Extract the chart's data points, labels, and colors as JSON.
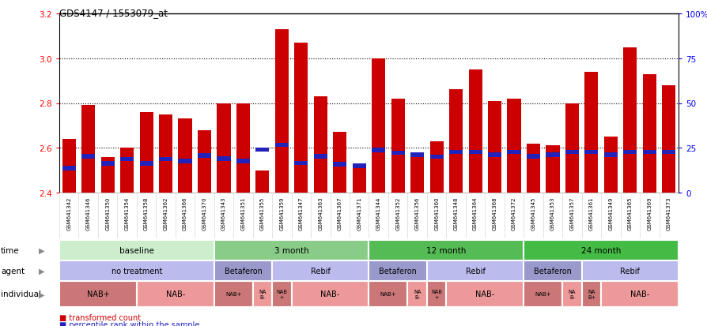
{
  "title": "GDS4147 / 1553079_at",
  "samples": [
    "GSM641342",
    "GSM641346",
    "GSM641350",
    "GSM641354",
    "GSM641358",
    "GSM641362",
    "GSM641366",
    "GSM641370",
    "GSM641343",
    "GSM641351",
    "GSM641355",
    "GSM641359",
    "GSM641347",
    "GSM641363",
    "GSM641367",
    "GSM641371",
    "GSM641344",
    "GSM641352",
    "GSM641356",
    "GSM641360",
    "GSM641348",
    "GSM641364",
    "GSM641368",
    "GSM641372",
    "GSM641345",
    "GSM641353",
    "GSM641357",
    "GSM641361",
    "GSM641349",
    "GSM641365",
    "GSM641369",
    "GSM641373"
  ],
  "bar_values": [
    2.64,
    2.79,
    2.56,
    2.6,
    2.76,
    2.75,
    2.73,
    2.68,
    2.8,
    2.8,
    2.5,
    3.13,
    3.07,
    2.83,
    2.67,
    2.53,
    3.0,
    2.82,
    2.56,
    2.63,
    2.86,
    2.95,
    2.81,
    2.82,
    2.62,
    2.61,
    2.8,
    2.94,
    2.65,
    3.05,
    2.93,
    2.88
  ],
  "blue_marker_pos": [
    2.5,
    2.552,
    2.52,
    2.54,
    2.52,
    2.54,
    2.53,
    2.555,
    2.542,
    2.53,
    2.582,
    2.603,
    2.522,
    2.552,
    2.518,
    2.51,
    2.58,
    2.568,
    2.558,
    2.55,
    2.572,
    2.572,
    2.56,
    2.572,
    2.552,
    2.56,
    2.572,
    2.572,
    2.56,
    2.572,
    2.572,
    2.572
  ],
  "bar_color": "#cc0000",
  "blue_color": "#2222bb",
  "ymin": 2.4,
  "ymax": 3.2,
  "y_ticks_left": [
    2.4,
    2.6,
    2.8,
    3.0,
    3.2
  ],
  "y_ticks_right": [
    0,
    25,
    50,
    75,
    100
  ],
  "dotted_lines": [
    2.6,
    2.8,
    3.0
  ],
  "time_groups": [
    {
      "label": "baseline",
      "start": 0,
      "end": 8,
      "color": "#cceecc"
    },
    {
      "label": "3 month",
      "start": 8,
      "end": 16,
      "color": "#88cc88"
    },
    {
      "label": "12 month",
      "start": 16,
      "end": 24,
      "color": "#55bb55"
    },
    {
      "label": "24 month",
      "start": 24,
      "end": 32,
      "color": "#44bb44"
    }
  ],
  "agent_groups": [
    {
      "label": "no treatment",
      "start": 0,
      "end": 8,
      "color": "#bbbbee"
    },
    {
      "label": "Betaferon",
      "start": 8,
      "end": 11,
      "color": "#9999cc"
    },
    {
      "label": "Rebif",
      "start": 11,
      "end": 16,
      "color": "#bbbbee"
    },
    {
      "label": "Betaferon",
      "start": 16,
      "end": 19,
      "color": "#9999cc"
    },
    {
      "label": "Rebif",
      "start": 19,
      "end": 24,
      "color": "#bbbbee"
    },
    {
      "label": "Betaferon",
      "start": 24,
      "end": 27,
      "color": "#9999cc"
    },
    {
      "label": "Rebif",
      "start": 27,
      "end": 32,
      "color": "#bbbbee"
    }
  ],
  "individual_groups": [
    {
      "label": "NAB+",
      "start": 0,
      "end": 4,
      "color": "#cc7777"
    },
    {
      "label": "NAB-",
      "start": 4,
      "end": 8,
      "color": "#ee9999"
    },
    {
      "label": "NAB+",
      "start": 8,
      "end": 10,
      "color": "#cc7777"
    },
    {
      "label": "NA\nB-",
      "start": 10,
      "end": 11,
      "color": "#ee9999"
    },
    {
      "label": "NAB\n+",
      "start": 11,
      "end": 12,
      "color": "#cc7777"
    },
    {
      "label": "NAB-",
      "start": 12,
      "end": 16,
      "color": "#ee9999"
    },
    {
      "label": "NAB+",
      "start": 16,
      "end": 18,
      "color": "#cc7777"
    },
    {
      "label": "NA\nB-",
      "start": 18,
      "end": 19,
      "color": "#ee9999"
    },
    {
      "label": "NAB\n+",
      "start": 19,
      "end": 20,
      "color": "#cc7777"
    },
    {
      "label": "NAB-",
      "start": 20,
      "end": 24,
      "color": "#ee9999"
    },
    {
      "label": "NAB+",
      "start": 24,
      "end": 26,
      "color": "#cc7777"
    },
    {
      "label": "NA\nB-",
      "start": 26,
      "end": 27,
      "color": "#ee9999"
    },
    {
      "label": "NA\nB+",
      "start": 27,
      "end": 28,
      "color": "#cc7777"
    },
    {
      "label": "NAB-",
      "start": 28,
      "end": 32,
      "color": "#ee9999"
    }
  ],
  "row_labels": [
    "time",
    "agent",
    "individual"
  ],
  "legend_items": [
    {
      "label": "transformed count",
      "color": "#cc0000"
    },
    {
      "label": "percentile rank within the sample",
      "color": "#2222bb"
    }
  ],
  "xtick_bg": "#dddddd",
  "n_samples": 32
}
